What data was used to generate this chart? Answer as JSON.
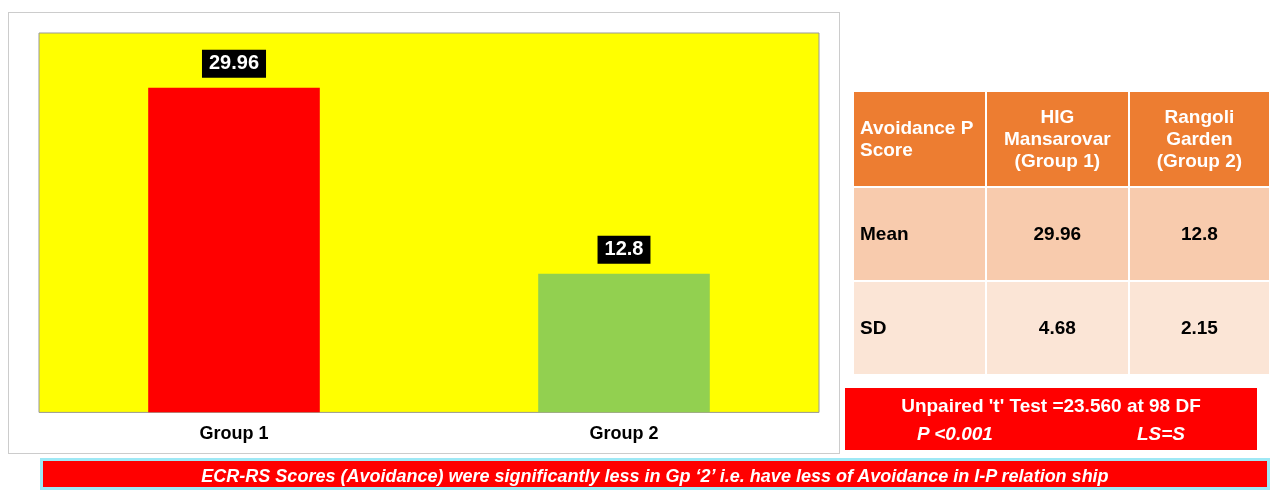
{
  "chart_data": {
    "type": "bar",
    "categories": [
      "Group 1",
      "Group 2"
    ],
    "values": [
      29.96,
      12.8
    ],
    "colors": [
      "#ff0000",
      "#92d050"
    ],
    "data_labels": true,
    "grid": false,
    "legend": false,
    "annotations": [
      "Avoidance P Score",
      "HIG Mansarovar (Group 1)",
      "Rangoli Garden (Group 2)",
      "Mean",
      "29.96",
      "12.8",
      "SD",
      "4.68",
      "2.15",
      "Unpaired 't' Test =23.560 at 98 DF",
      "P <0.001",
      "LS=S",
      "ECR-RS Scores (Avoidance) were significantly less in Gp ‘2’ i.e. have less of Avoidance in I-P relation ship"
    ]
  }
}
